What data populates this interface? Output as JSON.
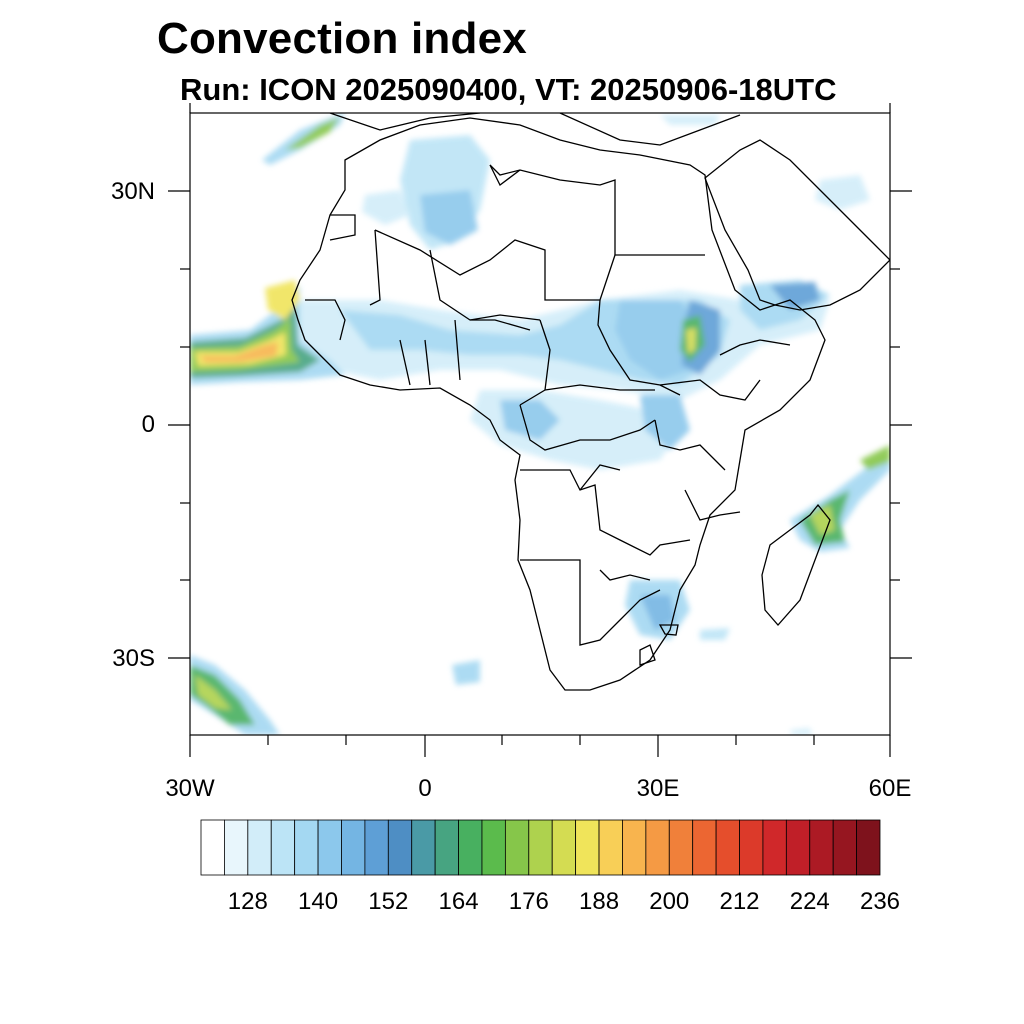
{
  "title": "Convection index",
  "subtitle": "Run: ICON 2025090400,  VT: 20250906-18UTC",
  "map": {
    "region": "Africa",
    "lon_range": [
      -30,
      60
    ],
    "lat_range": [
      -40,
      40
    ],
    "x_ticks": [
      {
        "lon": -30,
        "label": "30W"
      },
      {
        "lon": 0,
        "label": "0"
      },
      {
        "lon": 30,
        "label": "30E"
      },
      {
        "lon": 60,
        "label": "60E"
      }
    ],
    "y_ticks": [
      {
        "lat": 30,
        "label": "30N"
      },
      {
        "lat": 0,
        "label": "0"
      },
      {
        "lat": -30,
        "label": "30S"
      }
    ]
  },
  "colorbar": {
    "colors": [
      "#ffffff",
      "#e8f6fc",
      "#d2edf9",
      "#bce4f6",
      "#a4d8f2",
      "#8cc8ec",
      "#74b5e3",
      "#5e9fd6",
      "#4e8ec4",
      "#4a9aa6",
      "#47a481",
      "#48b060",
      "#5bbb4c",
      "#86c64a",
      "#aed24e",
      "#d4dc52",
      "#f0e45a",
      "#f8cf57",
      "#f8b44e",
      "#f59a44",
      "#f0803a",
      "#ec6632",
      "#e54e2c",
      "#dc3a2a",
      "#d0282a",
      "#c01f28",
      "#ac1a24",
      "#961620",
      "#7e121c"
    ],
    "labels": [
      "128",
      "140",
      "152",
      "164",
      "176",
      "188",
      "200",
      "212",
      "224",
      "236"
    ]
  }
}
